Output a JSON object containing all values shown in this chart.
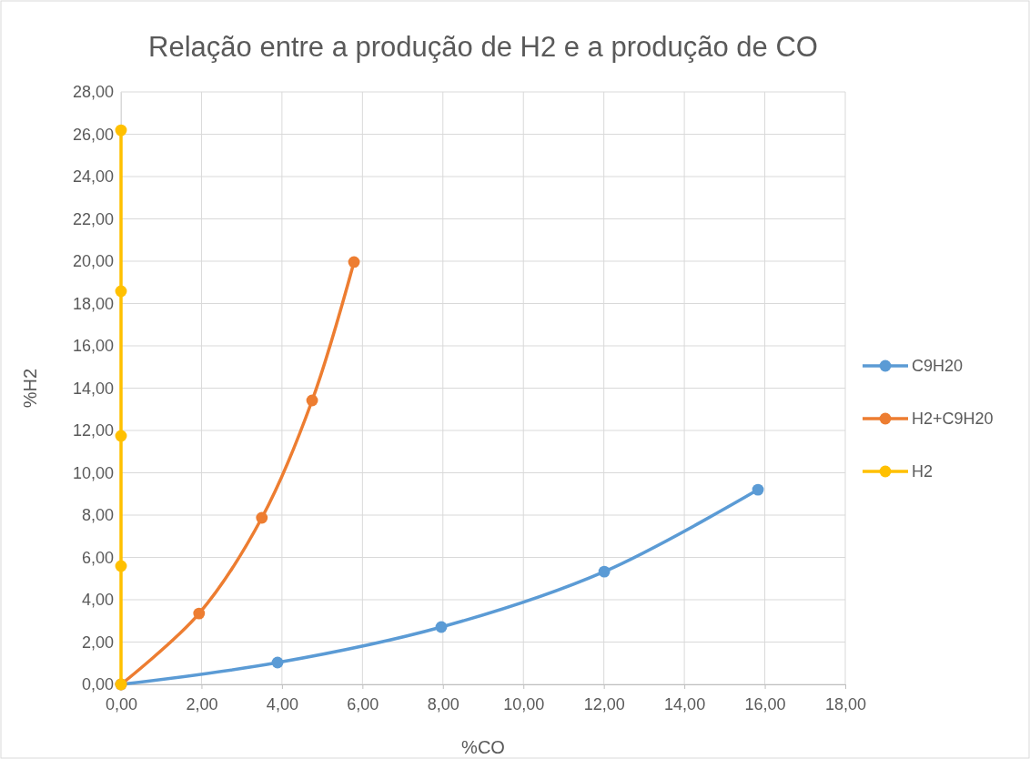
{
  "chart_data": {
    "type": "line",
    "title": "Relação entre a produção de H2 e a produção de CO",
    "xlabel": "%CO",
    "ylabel": "%H2",
    "xlim": [
      0,
      18
    ],
    "ylim": [
      0,
      28
    ],
    "xticks": [
      {
        "value": 0,
        "label": "0,00"
      },
      {
        "value": 2,
        "label": "2,00"
      },
      {
        "value": 4,
        "label": "4,00"
      },
      {
        "value": 6,
        "label": "6,00"
      },
      {
        "value": 8,
        "label": "8,00"
      },
      {
        "value": 10,
        "label": "10,00"
      },
      {
        "value": 12,
        "label": "12,00"
      },
      {
        "value": 14,
        "label": "14,00"
      },
      {
        "value": 16,
        "label": "16,00"
      },
      {
        "value": 18,
        "label": "18,00"
      }
    ],
    "yticks": [
      {
        "value": 0,
        "label": "0,00"
      },
      {
        "value": 2,
        "label": "2,00"
      },
      {
        "value": 4,
        "label": "4,00"
      },
      {
        "value": 6,
        "label": "6,00"
      },
      {
        "value": 8,
        "label": "8,00"
      },
      {
        "value": 10,
        "label": "10,00"
      },
      {
        "value": 12,
        "label": "12,00"
      },
      {
        "value": 14,
        "label": "14,00"
      },
      {
        "value": 16,
        "label": "16,00"
      },
      {
        "value": 18,
        "label": "18,00"
      },
      {
        "value": 20,
        "label": "20,00"
      },
      {
        "value": 22,
        "label": "22,00"
      },
      {
        "value": 24,
        "label": "24,00"
      },
      {
        "value": 26,
        "label": "26,00"
      },
      {
        "value": 28,
        "label": "28,00"
      }
    ],
    "grid": true,
    "legend": "right",
    "marker": "circle",
    "line_style": "solid",
    "series": [
      {
        "name": "C9H20",
        "color": "#5b9bd5",
        "x": [
          0,
          3.89,
          7.96,
          12.01,
          15.83
        ],
        "values": [
          0,
          1.03,
          2.71,
          5.33,
          9.2
        ]
      },
      {
        "name": "H2+C9H20",
        "color": "#ed7d31",
        "x": [
          0,
          1.94,
          3.5,
          4.75,
          5.79
        ],
        "values": [
          0,
          3.35,
          7.87,
          13.42,
          19.96
        ]
      },
      {
        "name": "H2",
        "color": "#ffc000",
        "x": [
          0,
          0,
          0,
          0,
          0
        ],
        "values": [
          0,
          5.59,
          11.74,
          18.58,
          26.19
        ]
      }
    ]
  }
}
